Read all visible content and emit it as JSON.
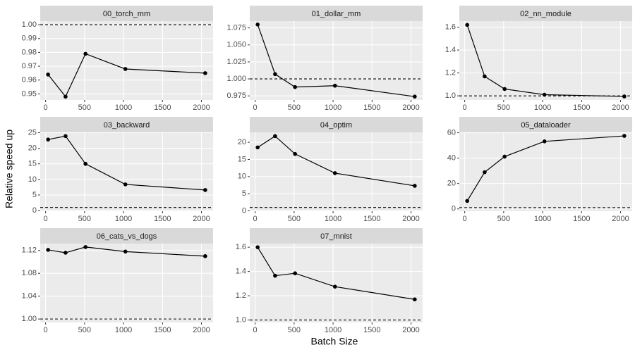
{
  "y_label": "Relative speed up",
  "x_label": "Batch Size",
  "chart_data": [
    {
      "type": "line",
      "title": "00_torch_mm",
      "x": [
        32,
        256,
        512,
        1024,
        2048
      ],
      "values": [
        0.964,
        0.948,
        0.979,
        0.968,
        0.965
      ],
      "color": "#000000",
      "hline": 1,
      "xlim": [
        -69,
        2149
      ],
      "xticks": [
        0,
        500,
        1000,
        1500,
        2000
      ],
      "ylim": [
        0.9456,
        1.0026
      ],
      "yticks": [
        0.95,
        0.96,
        0.97,
        0.98,
        0.99,
        {
          "value": 1,
          "label": "1.00"
        }
      ],
      "grid": true
    },
    {
      "type": "line",
      "title": "01_dollar_mm",
      "x": [
        32,
        256,
        512,
        1024,
        2048
      ],
      "values": [
        1.08,
        1.007,
        0.988,
        0.99,
        0.974
      ],
      "color": "#000000",
      "hline": 1,
      "xlim": [
        -69,
        2149
      ],
      "xticks": [
        0,
        500,
        1000,
        1500,
        2000
      ],
      "ylim": [
        0.969,
        1.085
      ],
      "yticks": [
        0.975,
        {
          "value": 1,
          "label": "1.000"
        },
        1.025,
        {
          "value": 1.05,
          "label": "1.050"
        },
        1.075
      ],
      "grid": true
    },
    {
      "type": "line",
      "title": "02_nn_module",
      "x": [
        32,
        256,
        512,
        1024,
        2048
      ],
      "values": [
        1.62,
        1.17,
        1.06,
        1.01,
        0.995
      ],
      "color": "#000000",
      "hline": 1,
      "xlim": [
        -69,
        2149
      ],
      "xticks": [
        0,
        500,
        1000,
        1500,
        2000
      ],
      "ylim": [
        0.964,
        1.653
      ],
      "yticks": [
        {
          "value": 1,
          "label": "1.0"
        },
        1.2,
        1.4,
        1.6
      ],
      "grid": true
    },
    {
      "type": "line",
      "title": "03_backward",
      "x": [
        32,
        256,
        512,
        1024,
        2048
      ],
      "values": [
        22.8,
        23.9,
        15.0,
        8.4,
        6.6
      ],
      "color": "#000000",
      "hline": 1,
      "xlim": [
        -69,
        2149
      ],
      "xticks": [
        0,
        500,
        1000,
        1500,
        2000
      ],
      "ylim": [
        -0.2,
        25.1
      ],
      "yticks": [
        0,
        5,
        10,
        15,
        20,
        25
      ],
      "grid": true
    },
    {
      "type": "line",
      "title": "04_optim",
      "x": [
        32,
        256,
        512,
        1024,
        2048
      ],
      "values": [
        18.5,
        21.8,
        16.6,
        11.0,
        7.3
      ],
      "color": "#000000",
      "hline": 1,
      "xlim": [
        -69,
        2149
      ],
      "xticks": [
        0,
        500,
        1000,
        1500,
        2000
      ],
      "ylim": [
        -0.1,
        22.9
      ],
      "yticks": [
        0,
        5,
        10,
        15,
        20
      ],
      "grid": true
    },
    {
      "type": "line",
      "title": "05_dataloader",
      "x": [
        32,
        256,
        512,
        1024,
        2048
      ],
      "values": [
        6.3,
        28.9,
        41.2,
        53.2,
        57.5
      ],
      "color": "#000000",
      "hline": 1,
      "xlim": [
        -69,
        2149
      ],
      "xticks": [
        0,
        500,
        1000,
        1500,
        2000
      ],
      "ylim": [
        -1.8,
        60.3
      ],
      "yticks": [
        0,
        20,
        40,
        60
      ],
      "grid": true
    },
    {
      "type": "line",
      "title": "06_cats_vs_dogs",
      "x": [
        32,
        256,
        512,
        1024,
        2048
      ],
      "values": [
        1.121,
        1.116,
        1.126,
        1.118,
        1.11
      ],
      "color": "#000000",
      "hline": 1,
      "xlim": [
        -69,
        2149
      ],
      "xticks": [
        0,
        500,
        1000,
        1500,
        2000
      ],
      "ylim": [
        0.994,
        1.132
      ],
      "yticks": [
        {
          "value": 1,
          "label": "1.00"
        },
        1.04,
        1.08,
        1.12
      ],
      "grid": true
    },
    {
      "type": "line",
      "title": "07_mnist",
      "x": [
        32,
        256,
        512,
        1024,
        2048
      ],
      "values": [
        1.6,
        1.365,
        1.385,
        1.275,
        1.17
      ],
      "color": "#000000",
      "hline": 1,
      "xlim": [
        -69,
        2149
      ],
      "xticks": [
        0,
        500,
        1000,
        1500,
        2000
      ],
      "ylim": [
        0.98,
        1.63
      ],
      "yticks": [
        {
          "value": 1,
          "label": "1.0"
        },
        1.2,
        1.4,
        1.6
      ],
      "grid": true
    }
  ]
}
